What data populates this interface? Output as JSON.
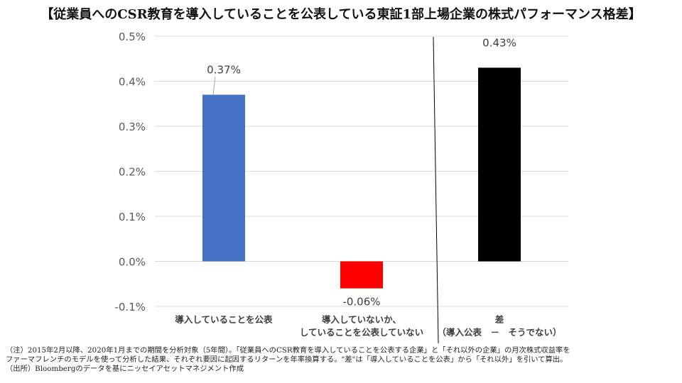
{
  "title": "【従業員へのCSR教育を導入していることを公表している東証1部上場企業の株式パフォーマンス格差】",
  "chart_data": {
    "type": "bar",
    "categories": [
      [
        "導入していることを公表"
      ],
      [
        "導入していないか、",
        "していることを公表していない"
      ],
      [
        "差",
        "（導入公表　－　そうでない）"
      ]
    ],
    "values": [
      0.37,
      -0.06,
      0.43
    ],
    "data_labels": [
      "0.37%",
      "-0.06%",
      "0.43%"
    ],
    "colors": [
      "#4472C4",
      "#FF0000",
      "#000000"
    ],
    "ylim": [
      -0.1,
      0.5
    ],
    "yticks": [
      0.5,
      0.4,
      0.3,
      0.2,
      0.1,
      0.0,
      -0.1
    ],
    "ytick_labels": [
      "0.5%",
      "0.4%",
      "0.3%",
      "0.2%",
      "0.1%",
      "0.0%",
      "-0.1%"
    ],
    "grid": true,
    "xlabel": "",
    "ylabel": ""
  },
  "notes": [
    "（注）2015年2月以降、2020年1月までの期間を分析対象（5年間）。「従業員へのCSR教育を導入していることを公表する企業」と「それ以外の企業」の月次株式収益率を",
    "ファーマフレンチのモデルを使って分析した結果、それぞれ要因に起因するリターンを年率換算する。\"差\"は「導入していることを公表」から「それ以外」を引いて算出。",
    "（出所）Bloombergのデータを基にニッセイアセットマネジメント作成"
  ]
}
